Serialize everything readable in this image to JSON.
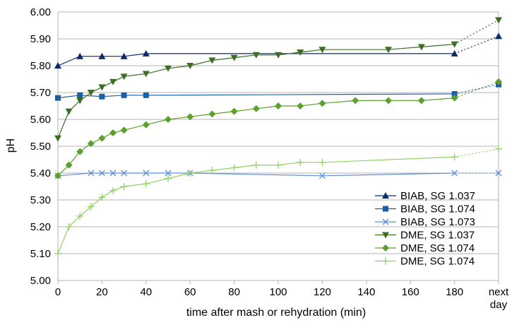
{
  "chart_data": {
    "type": "line",
    "xlabel": "time after mash or rehydration (min)",
    "ylabel": "pH",
    "ylim": [
      5.0,
      6.0
    ],
    "xlim": [
      0,
      200
    ],
    "y_ticks": [
      "5.00",
      "5.10",
      "5.20",
      "5.30",
      "5.40",
      "5.50",
      "5.60",
      "5.70",
      "5.80",
      "5.90",
      "6.00"
    ],
    "x_ticks": [
      {
        "x": 0,
        "lines": [
          "0"
        ]
      },
      {
        "x": 20,
        "lines": [
          "20"
        ]
      },
      {
        "x": 40,
        "lines": [
          "40"
        ]
      },
      {
        "x": 60,
        "lines": [
          "60"
        ]
      },
      {
        "x": 80,
        "lines": [
          "80"
        ]
      },
      {
        "x": 100,
        "lines": [
          "100"
        ]
      },
      {
        "x": 120,
        "lines": [
          "120"
        ]
      },
      {
        "x": 140,
        "lines": [
          "140"
        ]
      },
      {
        "x": 160,
        "lines": [
          "160"
        ]
      },
      {
        "x": 180,
        "lines": [
          "180"
        ]
      },
      {
        "x": 200,
        "lines": [
          "next",
          "day"
        ]
      }
    ],
    "grid": "horizontal",
    "legend_position": "bottom-right",
    "next_day_x": 200,
    "series": [
      {
        "name": "BIAB, SG 1.037",
        "color": "#0b2b6b",
        "marker": "triangle-up",
        "x": [
          0,
          10,
          20,
          30,
          40,
          180
        ],
        "y": [
          5.8,
          5.835,
          5.835,
          5.835,
          5.845,
          5.845
        ],
        "next_day": 5.91
      },
      {
        "name": "BIAB, SG 1.074",
        "color": "#1a5fa6",
        "marker": "square",
        "x": [
          0,
          10,
          20,
          30,
          40,
          180
        ],
        "y": [
          5.68,
          5.69,
          5.685,
          5.69,
          5.69,
          5.695
        ],
        "next_day": 5.73
      },
      {
        "name": "BIAB, SG 1.073",
        "color": "#5c8fd6",
        "marker": "x",
        "x": [
          0,
          15,
          20,
          25,
          30,
          40,
          50,
          60,
          120,
          180
        ],
        "y": [
          5.39,
          5.4,
          5.4,
          5.4,
          5.4,
          5.4,
          5.4,
          5.4,
          5.39,
          5.4
        ],
        "next_day": 5.4
      },
      {
        "name": "DME, SG 1.037",
        "color": "#3d6e24",
        "marker": "triangle-down",
        "x": [
          0,
          5,
          10,
          15,
          20,
          25,
          30,
          40,
          50,
          60,
          70,
          80,
          90,
          100,
          110,
          120,
          150,
          165,
          180
        ],
        "y": [
          5.53,
          5.63,
          5.67,
          5.7,
          5.72,
          5.74,
          5.76,
          5.77,
          5.79,
          5.8,
          5.82,
          5.83,
          5.84,
          5.84,
          5.85,
          5.86,
          5.86,
          5.87,
          5.88
        ],
        "next_day": 5.97
      },
      {
        "name": "DME, SG 1.074",
        "color": "#5ba02c",
        "marker": "diamond",
        "x": [
          0,
          5,
          10,
          15,
          20,
          25,
          30,
          40,
          50,
          60,
          70,
          80,
          90,
          100,
          110,
          120,
          135,
          150,
          165,
          180
        ],
        "y": [
          5.39,
          5.43,
          5.48,
          5.51,
          5.53,
          5.55,
          5.56,
          5.58,
          5.6,
          5.61,
          5.62,
          5.63,
          5.64,
          5.65,
          5.65,
          5.66,
          5.67,
          5.67,
          5.67,
          5.68
        ],
        "next_day": 5.74
      },
      {
        "name": "DME, SG 1.074",
        "color": "#8cd262",
        "marker": "plus",
        "x": [
          0,
          5,
          10,
          15,
          20,
          25,
          30,
          40,
          50,
          60,
          70,
          80,
          90,
          100,
          110,
          120,
          180
        ],
        "y": [
          5.1,
          5.2,
          5.24,
          5.275,
          5.31,
          5.335,
          5.35,
          5.36,
          5.38,
          5.4,
          5.41,
          5.42,
          5.43,
          5.43,
          5.44,
          5.44,
          5.46
        ],
        "next_day": 5.49
      }
    ]
  }
}
